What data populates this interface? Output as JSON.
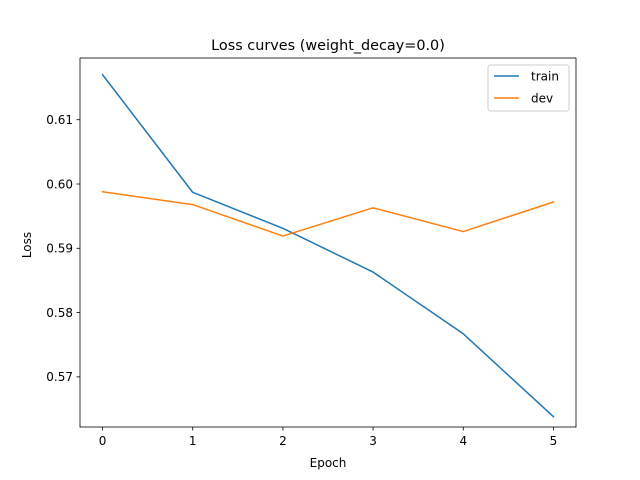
{
  "chart_data": {
    "type": "line",
    "title": "Loss curves (weight_decay=0.0)",
    "xlabel": "Epoch",
    "ylabel": "Loss",
    "x": [
      0,
      1,
      2,
      3,
      4,
      5
    ],
    "xticks": [
      "0",
      "1",
      "2",
      "3",
      "4",
      "5"
    ],
    "yticks": [
      "0.57",
      "0.58",
      "0.59",
      "0.60",
      "0.61"
    ],
    "xlim": [
      -0.25,
      5.25
    ],
    "ylim": [
      0.5622,
      0.6196
    ],
    "grid": false,
    "legend_position": "top-right",
    "series": [
      {
        "name": "train",
        "color": "#1f77b4",
        "values": [
          0.617,
          0.5987,
          0.5931,
          0.5863,
          0.5767,
          0.5638
        ]
      },
      {
        "name": "dev",
        "color": "#ff7f0e",
        "values": [
          0.5988,
          0.5968,
          0.5919,
          0.5963,
          0.5926,
          0.5972
        ]
      }
    ]
  }
}
